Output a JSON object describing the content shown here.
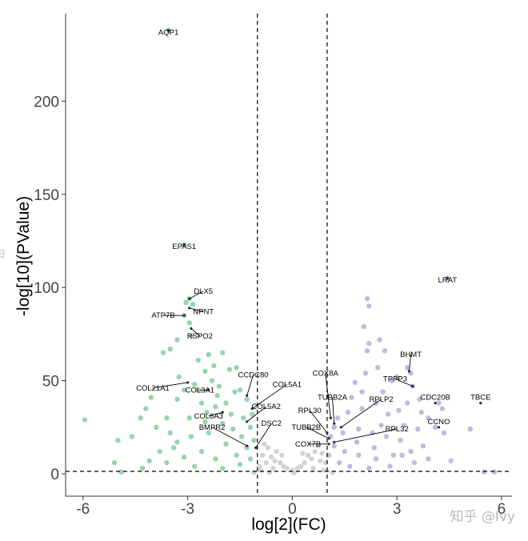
{
  "chart_data": {
    "type": "scatter",
    "title": "",
    "xlabel": "log[2](FC)",
    "ylabel": "-log[10](PValue)",
    "xlim": [
      -6.5,
      6.3
    ],
    "ylim": [
      -12,
      247
    ],
    "xticks": [
      -6,
      -3,
      0,
      3,
      6
    ],
    "xtick_labels": [
      "-6",
      "-3",
      "0",
      "3",
      "6"
    ],
    "yticks": [
      0,
      50,
      100,
      150,
      200
    ],
    "ytick_labels": [
      "0",
      "50",
      "100",
      "150",
      "200"
    ],
    "thresholds": {
      "fc": [
        -1,
        1
      ],
      "pvalue": 1.3
    },
    "colors": {
      "down": "#97d5ac",
      "up": "#c4b7e0",
      "ns": "#d3d3d3",
      "label_point": "#1f2d3d"
    },
    "series": [
      {
        "name": "down",
        "points": [
          [
            -3.55,
            238
          ],
          [
            -3.1,
            123
          ],
          [
            -3.05,
            92
          ],
          [
            -2.95,
            94
          ],
          [
            -2.85,
            91
          ],
          [
            -3.1,
            85
          ],
          [
            -2.95,
            81
          ],
          [
            -2.9,
            74
          ],
          [
            -3.3,
            72
          ],
          [
            -3.5,
            67
          ],
          [
            -3.7,
            65
          ],
          [
            -2.4,
            64
          ],
          [
            -2.0,
            65
          ],
          [
            -2.7,
            61
          ],
          [
            -2.5,
            55
          ],
          [
            -2.25,
            58
          ],
          [
            -1.8,
            56
          ],
          [
            -1.6,
            57
          ],
          [
            -3.25,
            52
          ],
          [
            -2.8,
            48
          ],
          [
            -2.3,
            50
          ],
          [
            -2.1,
            47
          ],
          [
            -2.7,
            45
          ],
          [
            -3.1,
            45
          ],
          [
            -3.3,
            40
          ],
          [
            -4.05,
            41
          ],
          [
            -4.2,
            35
          ],
          [
            -4.35,
            30
          ],
          [
            -3.6,
            30
          ],
          [
            -2.6,
            38
          ],
          [
            -2.2,
            36
          ],
          [
            -1.9,
            38
          ],
          [
            -1.5,
            45
          ],
          [
            -1.3,
            40
          ],
          [
            -2.5,
            28
          ],
          [
            -2.0,
            27
          ],
          [
            -3.9,
            25
          ],
          [
            -3.5,
            22
          ],
          [
            -4.6,
            20
          ],
          [
            -5.0,
            18
          ],
          [
            -5.1,
            6
          ],
          [
            -4.9,
            1
          ],
          [
            -5.95,
            29
          ],
          [
            -4.1,
            7
          ],
          [
            -3.8,
            12
          ],
          [
            -3.3,
            17
          ],
          [
            -2.9,
            20
          ],
          [
            -2.4,
            22
          ],
          [
            -1.7,
            24
          ],
          [
            -1.45,
            20
          ],
          [
            -1.2,
            25
          ],
          [
            -1.9,
            16
          ],
          [
            -2.6,
            12
          ],
          [
            -3.1,
            9
          ],
          [
            -3.6,
            6
          ],
          [
            -4.3,
            3
          ],
          [
            -2.2,
            8
          ],
          [
            -1.6,
            10
          ],
          [
            -1.3,
            14
          ],
          [
            -1.1,
            18
          ],
          [
            -2.8,
            4
          ],
          [
            -2.0,
            3
          ],
          [
            -1.5,
            5
          ],
          [
            -1.2,
            8
          ],
          [
            -3.4,
            14
          ],
          [
            -2.45,
            33
          ],
          [
            -1.75,
            32
          ],
          [
            -1.4,
            30
          ],
          [
            -1.15,
            32
          ],
          [
            -2.15,
            42
          ],
          [
            -1.65,
            44
          ],
          [
            -2.95,
            30
          ]
        ]
      },
      {
        "name": "up",
        "points": [
          [
            4.45,
            105
          ],
          [
            2.15,
            94
          ],
          [
            2.2,
            90
          ],
          [
            2.05,
            79
          ],
          [
            2.2,
            70
          ],
          [
            2.5,
            72
          ],
          [
            2.15,
            66
          ],
          [
            2.65,
            66
          ],
          [
            3.4,
            54
          ],
          [
            3.3,
            57
          ],
          [
            3.45,
            47
          ],
          [
            2.85,
            50
          ],
          [
            3.0,
            52
          ],
          [
            2.45,
            57
          ],
          [
            2.1,
            54
          ],
          [
            1.8,
            49
          ],
          [
            3.65,
            40
          ],
          [
            3.7,
            33
          ],
          [
            3.9,
            30
          ],
          [
            4.2,
            38
          ],
          [
            4.3,
            35
          ],
          [
            4.1,
            25
          ],
          [
            4.35,
            22
          ],
          [
            3.75,
            15
          ],
          [
            5.1,
            24
          ],
          [
            4.55,
            7
          ],
          [
            5.5,
            1
          ],
          [
            5.8,
            1
          ],
          [
            3.3,
            38
          ],
          [
            3.05,
            34
          ],
          [
            2.75,
            32
          ],
          [
            2.4,
            38
          ],
          [
            2.0,
            35
          ],
          [
            1.6,
            33
          ],
          [
            1.3,
            30
          ],
          [
            1.2,
            25
          ],
          [
            1.45,
            22
          ],
          [
            1.9,
            24
          ],
          [
            2.3,
            22
          ],
          [
            2.7,
            20
          ],
          [
            3.1,
            18
          ],
          [
            3.4,
            12
          ],
          [
            2.9,
            10
          ],
          [
            2.4,
            8
          ],
          [
            1.9,
            10
          ],
          [
            1.5,
            12
          ],
          [
            1.2,
            15
          ],
          [
            1.1,
            20
          ],
          [
            1.65,
            4
          ],
          [
            2.2,
            3
          ],
          [
            2.8,
            4
          ],
          [
            3.5,
            6
          ],
          [
            3.9,
            8
          ],
          [
            1.35,
            6
          ],
          [
            1.05,
            10
          ],
          [
            2.6,
            44
          ],
          [
            2.0,
            44
          ],
          [
            1.7,
            41
          ],
          [
            3.6,
            24
          ],
          [
            3.2,
            26
          ],
          [
            2.55,
            26
          ],
          [
            1.85,
            17
          ],
          [
            2.35,
            14
          ],
          [
            3.15,
            10
          ]
        ]
      },
      {
        "name": "ns",
        "points": [
          [
            -0.95,
            4
          ],
          [
            -0.85,
            10
          ],
          [
            -0.8,
            16
          ],
          [
            -0.7,
            14
          ],
          [
            -0.6,
            9
          ],
          [
            -0.5,
            7
          ],
          [
            -0.45,
            12
          ],
          [
            -0.35,
            6
          ],
          [
            -0.25,
            4
          ],
          [
            -0.15,
            3
          ],
          [
            0.0,
            2
          ],
          [
            0.15,
            3
          ],
          [
            0.25,
            4
          ],
          [
            0.35,
            6
          ],
          [
            0.45,
            10
          ],
          [
            0.55,
            8
          ],
          [
            0.65,
            12
          ],
          [
            0.75,
            15
          ],
          [
            0.85,
            11
          ],
          [
            0.95,
            6
          ],
          [
            -0.9,
            2
          ],
          [
            -0.55,
            3
          ],
          [
            0.6,
            3
          ],
          [
            0.9,
            2
          ],
          [
            -0.75,
            6
          ],
          [
            0.8,
            7
          ],
          [
            -0.3,
            10
          ],
          [
            0.3,
            11
          ],
          [
            -1.1,
            0.6
          ],
          [
            1.15,
            0.6
          ],
          [
            0.05,
            0.5
          ],
          [
            -0.65,
            0.8
          ]
        ]
      }
    ],
    "annotations": [
      {
        "label": "AQP1",
        "x": -3.55,
        "y": 238,
        "lx": -3.55,
        "ly": 237,
        "line": false
      },
      {
        "label": "EPAS1",
        "x": -3.1,
        "y": 123,
        "lx": -3.1,
        "ly": 122,
        "line": false
      },
      {
        "label": "DLX5",
        "x": -2.95,
        "y": 94,
        "lx": -2.55,
        "ly": 98,
        "line": true
      },
      {
        "label": "NPNT",
        "x": -2.95,
        "y": 89,
        "lx": -2.55,
        "ly": 87,
        "line": true
      },
      {
        "label": "ATP7B",
        "x": -3.1,
        "y": 85,
        "lx": -3.7,
        "ly": 85,
        "line": true
      },
      {
        "label": "RSPO2",
        "x": -2.9,
        "y": 78,
        "lx": -2.65,
        "ly": 74,
        "line": true
      },
      {
        "label": "CCDC80",
        "x": -1.3,
        "y": 42,
        "lx": -1.12,
        "ly": 53,
        "line": true
      },
      {
        "label": "COL5A1",
        "x": -1.15,
        "y": 35,
        "lx": -0.15,
        "ly": 48,
        "line": true
      },
      {
        "label": "COL21A1",
        "x": -3.0,
        "y": 49,
        "lx": -4.0,
        "ly": 46,
        "line": true
      },
      {
        "label": "COL3A1",
        "x": -2.4,
        "y": 45,
        "lx": -2.65,
        "ly": 45,
        "line": true
      },
      {
        "label": "COL5A2",
        "x": -1.3,
        "y": 28,
        "lx": -0.75,
        "ly": 36,
        "line": true
      },
      {
        "label": "COL6A3",
        "x": -2.0,
        "y": 33,
        "lx": -2.4,
        "ly": 31,
        "line": true
      },
      {
        "label": "DSC2",
        "x": -1.05,
        "y": 14,
        "lx": -0.6,
        "ly": 27,
        "line": true
      },
      {
        "label": "BMPR2",
        "x": -1.3,
        "y": 15,
        "lx": -2.3,
        "ly": 25,
        "line": true
      },
      {
        "label": "COX8A",
        "x": 1.1,
        "y": 30,
        "lx": 0.95,
        "ly": 54,
        "line": true
      },
      {
        "label": "BHMT",
        "x": 3.35,
        "y": 55,
        "lx": 3.4,
        "ly": 64,
        "line": true
      },
      {
        "label": "TPPP3",
        "x": 3.45,
        "y": 47,
        "lx": 2.95,
        "ly": 51,
        "line": true
      },
      {
        "label": "TUBB2A",
        "x": 1.2,
        "y": 27,
        "lx": 1.15,
        "ly": 41,
        "line": true
      },
      {
        "label": "RPLP2",
        "x": 1.4,
        "y": 25,
        "lx": 2.55,
        "ly": 40,
        "line": true
      },
      {
        "label": "CDC20B",
        "x": 4.1,
        "y": 38,
        "lx": 4.1,
        "ly": 41,
        "line": false
      },
      {
        "label": "TBCE",
        "x": 5.4,
        "y": 38,
        "lx": 5.4,
        "ly": 41,
        "line": false
      },
      {
        "label": "RPL30",
        "x": 1.0,
        "y": 22,
        "lx": 0.5,
        "ly": 34,
        "line": true
      },
      {
        "label": "CCNO",
        "x": 4.2,
        "y": 25,
        "lx": 4.2,
        "ly": 28,
        "line": false
      },
      {
        "label": "TUBB2B",
        "x": 1.05,
        "y": 19,
        "lx": 0.4,
        "ly": 25,
        "line": true
      },
      {
        "label": "RPL32",
        "x": 1.2,
        "y": 17,
        "lx": 3.0,
        "ly": 24,
        "line": true
      },
      {
        "label": "COX7B",
        "x": 1.05,
        "y": 16,
        "lx": 0.45,
        "ly": 16,
        "line": true
      },
      {
        "label": "LRAT",
        "x": 4.45,
        "y": 105,
        "lx": 4.45,
        "ly": 104,
        "line": false
      }
    ]
  },
  "watermark": "知乎 @Ivy",
  "overlay_text": "日"
}
